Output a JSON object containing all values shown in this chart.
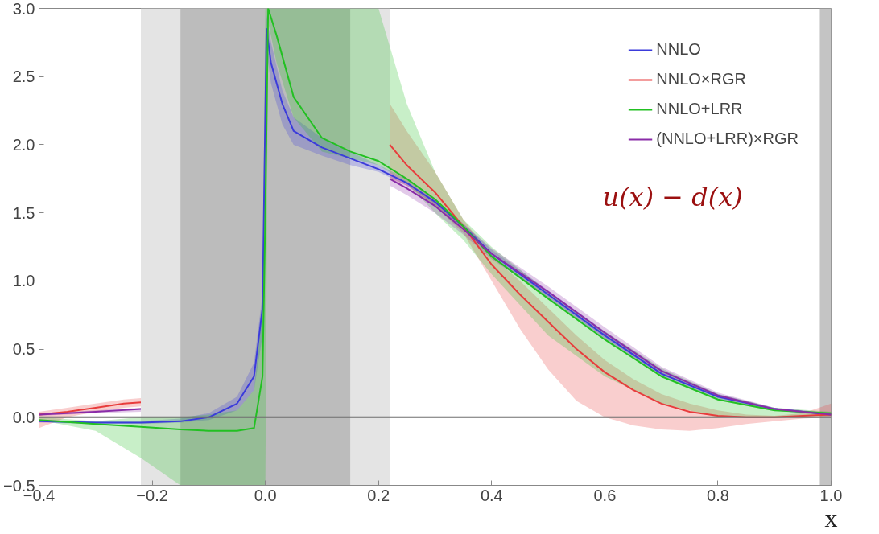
{
  "chart_data": {
    "type": "line",
    "xlabel": "x",
    "xlim": [
      -0.4,
      1.0
    ],
    "ylim": [
      -0.5,
      3.0
    ],
    "xticks": [
      -0.4,
      -0.2,
      {
        "value": 0.0,
        "label": "0.0"
      },
      0.2,
      0.4,
      0.6,
      0.8,
      {
        "value": 1.0,
        "label": "1.0"
      }
    ],
    "yticks": [
      -0.5,
      {
        "value": 0.0,
        "label": "0.0"
      },
      0.5,
      {
        "value": 1.0,
        "label": "1.0"
      },
      1.5,
      {
        "value": 2.0,
        "label": "2.0"
      },
      2.5,
      {
        "value": 3.0,
        "label": "3.0"
      }
    ],
    "grid": false,
    "legend": "top right",
    "marker": "none",
    "line_style": "solid",
    "annotations": [
      "u(x) − d(x)"
    ],
    "bands": [
      {
        "axis": "x",
        "from": -0.22,
        "to": 0.22,
        "color": "#e4e4e4"
      },
      {
        "axis": "x",
        "from": -0.15,
        "to": 0.15,
        "color": "#bcbcbc"
      },
      {
        "axis": "x",
        "from": 0.98,
        "to": 1.0,
        "color": "#c4c4c4"
      }
    ],
    "ref_lines": [
      {
        "axis": "y",
        "value": 0.0,
        "color": "#6e6e6e"
      }
    ],
    "series": [
      {
        "name": "NNLO",
        "color": "#3b3bdb",
        "x": [
          -0.4,
          -0.3,
          -0.22,
          -0.15,
          -0.1,
          -0.05,
          -0.02,
          -0.005,
          0.002,
          0.01,
          0.03,
          0.05,
          0.1,
          0.15,
          0.2,
          0.25,
          0.3,
          0.35,
          0.4,
          0.5,
          0.6,
          0.7,
          0.8,
          0.9,
          1.0
        ],
        "values": [
          -0.03,
          -0.04,
          -0.04,
          -0.03,
          0.0,
          0.1,
          0.3,
          0.8,
          2.85,
          2.6,
          2.3,
          2.1,
          1.98,
          1.9,
          1.82,
          1.72,
          1.58,
          1.4,
          1.2,
          0.9,
          0.6,
          0.32,
          0.15,
          0.06,
          0.02
        ],
        "lower": [
          -0.04,
          -0.05,
          -0.05,
          -0.04,
          -0.02,
          0.05,
          0.2,
          0.6,
          2.7,
          2.45,
          2.15,
          2.0,
          1.92,
          1.85,
          1.8,
          1.7,
          1.56,
          1.38,
          1.17,
          0.87,
          0.57,
          0.3,
          0.13,
          0.05,
          0.01
        ],
        "upper": [
          -0.02,
          -0.03,
          -0.03,
          -0.01,
          0.03,
          0.15,
          0.4,
          0.9,
          2.95,
          2.75,
          2.4,
          2.2,
          2.05,
          1.95,
          1.85,
          1.75,
          1.6,
          1.42,
          1.23,
          0.93,
          0.63,
          0.35,
          0.17,
          0.07,
          0.03
        ]
      },
      {
        "name": "NNLO×RGR",
        "color": "#e83c3c",
        "x": [
          -0.4,
          -0.35,
          -0.3,
          -0.25,
          -0.22,
          0.0,
          0.22,
          0.25,
          0.3,
          0.35,
          0.4,
          0.45,
          0.5,
          0.55,
          0.6,
          0.65,
          0.7,
          0.75,
          0.8,
          0.85,
          0.9,
          0.95,
          1.0
        ],
        "values": [
          0.02,
          0.04,
          0.07,
          0.1,
          0.11,
          null,
          2.0,
          1.85,
          1.65,
          1.4,
          1.12,
          0.9,
          0.7,
          0.5,
          0.33,
          0.2,
          0.1,
          0.04,
          0.01,
          0.0,
          0.0,
          0.01,
          0.02
        ],
        "lower": [
          -0.08,
          0.0,
          0.04,
          0.07,
          0.08,
          null,
          1.75,
          1.7,
          1.55,
          1.35,
          1.0,
          0.65,
          0.35,
          0.12,
          0.0,
          -0.06,
          -0.09,
          -0.1,
          -0.08,
          -0.05,
          -0.03,
          -0.01,
          0.0
        ],
        "upper": [
          0.04,
          0.07,
          0.1,
          0.13,
          0.14,
          null,
          2.3,
          2.1,
          1.8,
          1.45,
          1.18,
          1.0,
          0.8,
          0.6,
          0.42,
          0.28,
          0.17,
          0.1,
          0.05,
          0.02,
          0.01,
          0.03,
          0.1
        ]
      },
      {
        "name": "NNLO+LRR",
        "color": "#22c022",
        "x": [
          -0.4,
          -0.3,
          -0.22,
          -0.15,
          -0.1,
          -0.05,
          -0.02,
          -0.005,
          0.0,
          0.005,
          0.02,
          0.05,
          0.1,
          0.15,
          0.2,
          0.25,
          0.3,
          0.35,
          0.4,
          0.5,
          0.6,
          0.7,
          0.8,
          0.9,
          1.0
        ],
        "values": [
          -0.02,
          -0.05,
          -0.07,
          -0.09,
          -0.1,
          -0.1,
          -0.08,
          0.3,
          1.5,
          3.0,
          2.8,
          2.35,
          2.05,
          1.95,
          1.88,
          1.75,
          1.6,
          1.4,
          1.18,
          0.87,
          0.57,
          0.3,
          0.13,
          0.05,
          0.03
        ],
        "lower": [
          -0.02,
          -0.1,
          -0.3,
          -0.5,
          -0.5,
          -0.5,
          -0.5,
          -0.5,
          -0.5,
          2.9,
          2.6,
          2.2,
          1.95,
          1.9,
          1.85,
          1.72,
          1.5,
          1.3,
          1.05,
          0.6,
          0.3,
          0.1,
          0.0,
          0.0,
          0.01
        ],
        "upper": [
          0.0,
          -0.03,
          0.0,
          0.0,
          0.02,
          0.05,
          0.2,
          0.8,
          3.0,
          3.0,
          3.0,
          3.0,
          3.0,
          3.0,
          3.0,
          2.3,
          1.8,
          1.45,
          1.25,
          0.92,
          0.63,
          0.36,
          0.17,
          0.07,
          0.04
        ]
      },
      {
        "name": "(NNLO+LRR)×RGR",
        "color": "#8a2ca8",
        "x": [
          -0.4,
          -0.3,
          -0.22,
          0.0,
          0.22,
          0.25,
          0.3,
          0.35,
          0.4,
          0.5,
          0.6,
          0.7,
          0.8,
          0.9,
          1.0
        ],
        "values": [
          0.02,
          0.04,
          0.06,
          null,
          1.75,
          1.68,
          1.55,
          1.38,
          1.2,
          0.92,
          0.62,
          0.34,
          0.16,
          0.06,
          0.02
        ],
        "lower": [
          0.01,
          0.03,
          0.04,
          null,
          1.7,
          1.63,
          1.5,
          1.34,
          1.16,
          0.88,
          0.58,
          0.31,
          0.14,
          0.05,
          0.01
        ],
        "upper": [
          0.03,
          0.05,
          0.07,
          null,
          1.8,
          1.72,
          1.6,
          1.42,
          1.24,
          0.96,
          0.66,
          0.37,
          0.18,
          0.07,
          0.03
        ]
      }
    ]
  }
}
